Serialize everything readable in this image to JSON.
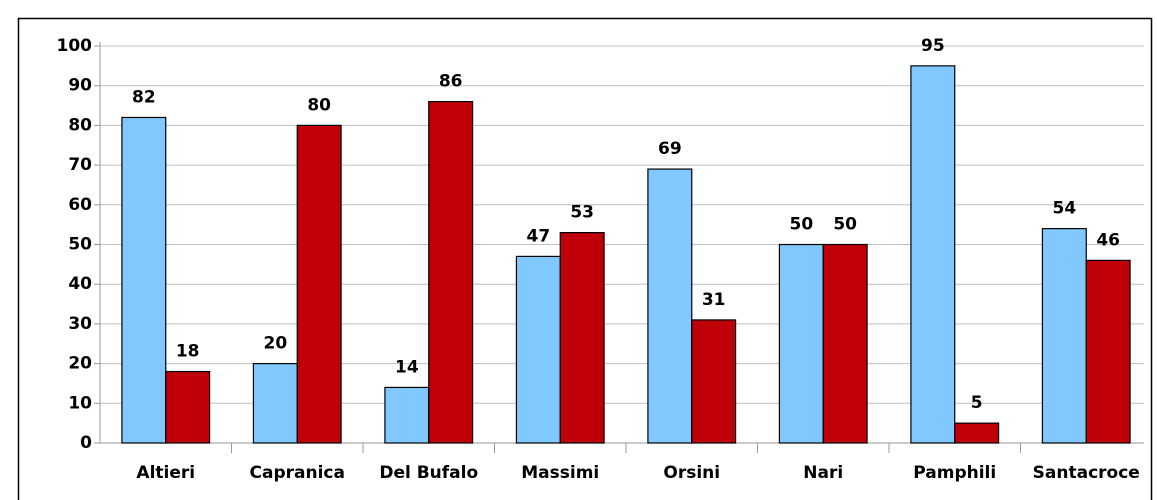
{
  "chart_data": {
    "type": "bar",
    "categories": [
      "Altieri",
      "Capranica",
      "Del Bufalo",
      "Massimi",
      "Orsini",
      "Nari",
      "Pamphili",
      "Santacroce"
    ],
    "series": [
      {
        "color": "#80c8ff",
        "values": [
          82,
          20,
          14,
          47,
          69,
          50,
          95,
          54
        ]
      },
      {
        "color": "#c00008",
        "values": [
          18,
          80,
          86,
          53,
          31,
          50,
          5,
          46
        ]
      }
    ],
    "ylim": [
      0,
      100
    ],
    "yticks": [
      0,
      10,
      20,
      30,
      40,
      50,
      60,
      70,
      80,
      90,
      100
    ],
    "grid": true
  }
}
